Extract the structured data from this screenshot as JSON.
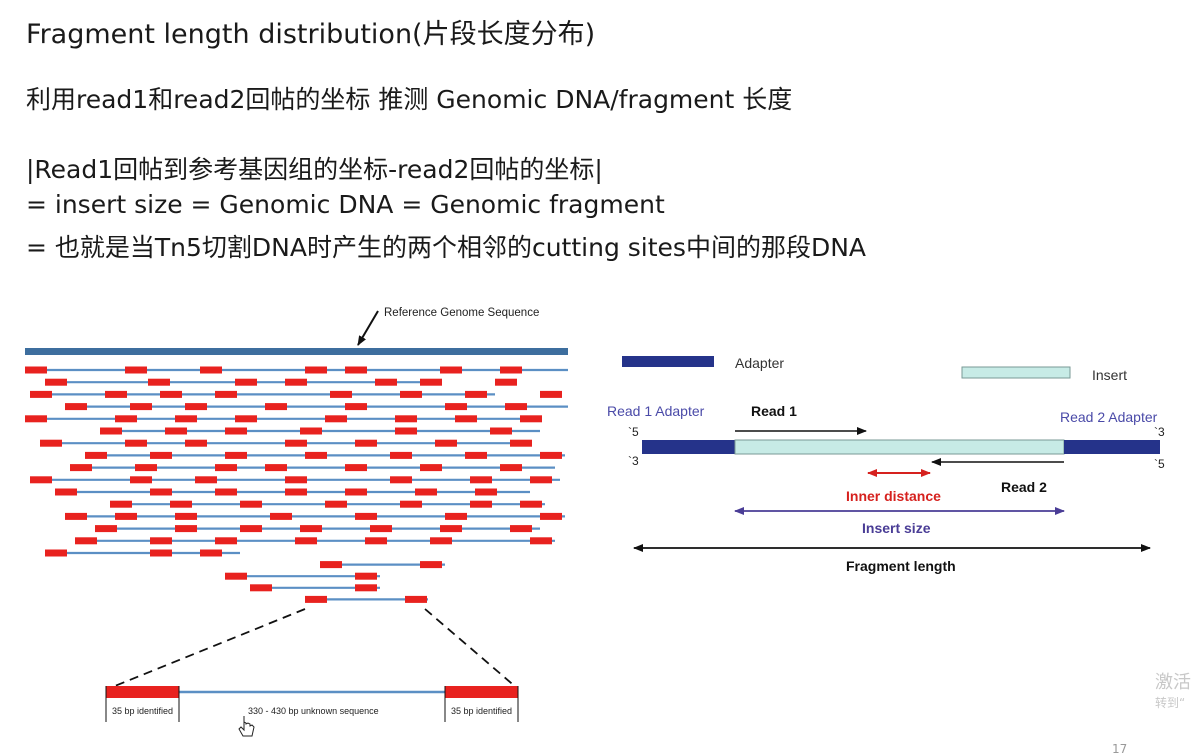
{
  "slide": {
    "title": "Fragment length distribution(片段长度分布)",
    "line1": "利用read1和read2回帖的坐标 推测 Genomic DNA/fragment 长度",
    "line2": "|Read1回帖到参考基因组的坐标-read2回帖的坐标|",
    "line3": "= insert size = Genomic DNA = Genomic fragment",
    "line4": "= 也就是当Tn5切割DNA时产生的两个相邻的cutting sites中间的那段DNA"
  },
  "left_figure": {
    "ref_label": "Reference Genome Sequence",
    "left_box_label": "35 bp identified",
    "middle_label": "330 - 430 bp unknown sequence",
    "right_box_label": "35 bp identified",
    "colors": {
      "reference": "#3d6e9e",
      "read": "#e8221f",
      "line": "#5b8fc4"
    }
  },
  "right_figure": {
    "adapter_label": "Adapter",
    "insert_label": "Insert",
    "read1_adapter": "Read 1 Adapter",
    "read2_adapter": "Read 2 Adapter",
    "read1": "Read 1",
    "read2": "Read 2",
    "five_prime_left": "`5",
    "three_prime_left": "`3",
    "three_prime_right": "`3",
    "five_prime_right": "`5",
    "inner_distance": "Inner distance",
    "insert_size": "Insert size",
    "fragment_length": "Fragment length",
    "colors": {
      "adapter": "#25338a",
      "insert": "#c7ebe6",
      "inner": "#d6211e",
      "insert_size": "#4a3d96",
      "adapter_label": "#4a4aa8"
    }
  },
  "watermark": {
    "line1": "激活",
    "line2": "转到“",
    "page": "17"
  }
}
